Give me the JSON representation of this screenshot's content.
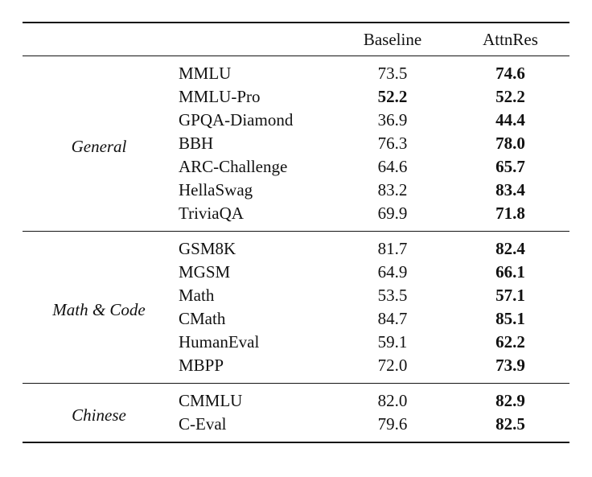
{
  "table": {
    "header": {
      "baseline": "Baseline",
      "attnres": "AttnRes"
    },
    "groups": [
      {
        "label": "General",
        "rows": [
          {
            "benchmark": "MMLU",
            "baseline": "73.5",
            "baseline_bold": false,
            "attnres": "74.6",
            "attnres_bold": true
          },
          {
            "benchmark": "MMLU-Pro",
            "baseline": "52.2",
            "baseline_bold": true,
            "attnres": "52.2",
            "attnres_bold": true
          },
          {
            "benchmark": "GPQA-Diamond",
            "baseline": "36.9",
            "baseline_bold": false,
            "attnres": "44.4",
            "attnres_bold": true
          },
          {
            "benchmark": "BBH",
            "baseline": "76.3",
            "baseline_bold": false,
            "attnres": "78.0",
            "attnres_bold": true
          },
          {
            "benchmark": "ARC-Challenge",
            "baseline": "64.6",
            "baseline_bold": false,
            "attnres": "65.7",
            "attnres_bold": true
          },
          {
            "benchmark": "HellaSwag",
            "baseline": "83.2",
            "baseline_bold": false,
            "attnres": "83.4",
            "attnres_bold": true
          },
          {
            "benchmark": "TriviaQA",
            "baseline": "69.9",
            "baseline_bold": false,
            "attnres": "71.8",
            "attnres_bold": true
          }
        ]
      },
      {
        "label": "Math & Code",
        "rows": [
          {
            "benchmark": "GSM8K",
            "baseline": "81.7",
            "baseline_bold": false,
            "attnres": "82.4",
            "attnres_bold": true
          },
          {
            "benchmark": "MGSM",
            "baseline": "64.9",
            "baseline_bold": false,
            "attnres": "66.1",
            "attnres_bold": true
          },
          {
            "benchmark": "Math",
            "baseline": "53.5",
            "baseline_bold": false,
            "attnres": "57.1",
            "attnres_bold": true
          },
          {
            "benchmark": "CMath",
            "baseline": "84.7",
            "baseline_bold": false,
            "attnres": "85.1",
            "attnres_bold": true
          },
          {
            "benchmark": "HumanEval",
            "baseline": "59.1",
            "baseline_bold": false,
            "attnres": "62.2",
            "attnres_bold": true
          },
          {
            "benchmark": "MBPP",
            "baseline": "72.0",
            "baseline_bold": false,
            "attnres": "73.9",
            "attnres_bold": true
          }
        ]
      },
      {
        "label": "Chinese",
        "rows": [
          {
            "benchmark": "CMMLU",
            "baseline": "82.0",
            "baseline_bold": false,
            "attnres": "82.9",
            "attnres_bold": true
          },
          {
            "benchmark": "C-Eval",
            "baseline": "79.6",
            "baseline_bold": false,
            "attnres": "82.5",
            "attnres_bold": true
          }
        ]
      }
    ]
  }
}
